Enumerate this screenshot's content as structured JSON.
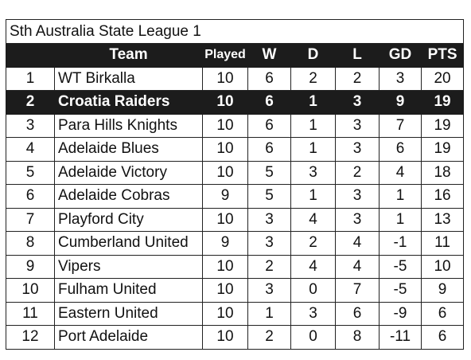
{
  "title": "Sth Australia State League 1",
  "headers": {
    "pos": "",
    "team": "Team",
    "played": "Played",
    "w": "W",
    "d": "D",
    "l": "L",
    "gd": "GD",
    "pts": "PTS"
  },
  "highlight_row": 1,
  "rows": [
    {
      "pos": "1",
      "team": "WT Birkalla",
      "played": "10",
      "w": "6",
      "d": "2",
      "l": "2",
      "gd": "3",
      "pts": "20"
    },
    {
      "pos": "2",
      "team": "Croatia Raiders",
      "played": "10",
      "w": "6",
      "d": "1",
      "l": "3",
      "gd": "9",
      "pts": "19"
    },
    {
      "pos": "3",
      "team": "Para Hills Knights",
      "played": "10",
      "w": "6",
      "d": "1",
      "l": "3",
      "gd": "7",
      "pts": "19"
    },
    {
      "pos": "4",
      "team": "Adelaide Blues",
      "played": "10",
      "w": "6",
      "d": "1",
      "l": "3",
      "gd": "6",
      "pts": "19"
    },
    {
      "pos": "5",
      "team": "Adelaide Victory",
      "played": "10",
      "w": "5",
      "d": "3",
      "l": "2",
      "gd": "4",
      "pts": "18"
    },
    {
      "pos": "6",
      "team": "Adelaide Cobras",
      "played": "9",
      "w": "5",
      "d": "1",
      "l": "3",
      "gd": "1",
      "pts": "16"
    },
    {
      "pos": "7",
      "team": "Playford City",
      "played": "10",
      "w": "3",
      "d": "4",
      "l": "3",
      "gd": "1",
      "pts": "13"
    },
    {
      "pos": "8",
      "team": "Cumberland United",
      "played": "9",
      "w": "3",
      "d": "2",
      "l": "4",
      "gd": "-1",
      "pts": "11"
    },
    {
      "pos": "9",
      "team": "Vipers",
      "played": "10",
      "w": "2",
      "d": "4",
      "l": "4",
      "gd": "-5",
      "pts": "10"
    },
    {
      "pos": "10",
      "team": "Fulham United",
      "played": "10",
      "w": "3",
      "d": "0",
      "l": "7",
      "gd": "-5",
      "pts": "9"
    },
    {
      "pos": "11",
      "team": "Eastern United",
      "played": "10",
      "w": "1",
      "d": "3",
      "l": "6",
      "gd": "-9",
      "pts": "6"
    },
    {
      "pos": "12",
      "team": "Port Adelaide",
      "played": "10",
      "w": "2",
      "d": "0",
      "l": "8",
      "gd": "-11",
      "pts": "6"
    }
  ]
}
